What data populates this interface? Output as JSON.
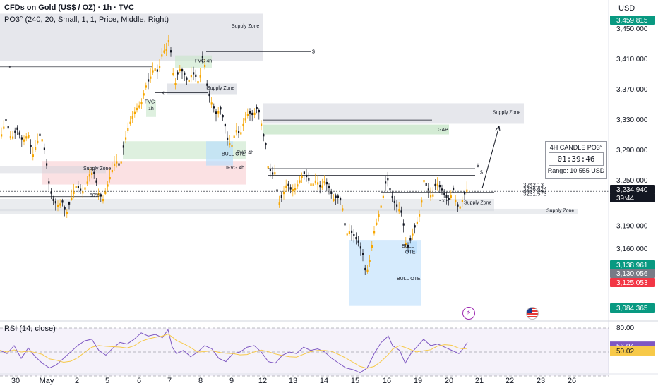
{
  "header": {
    "title": "CFDs on Gold (US$ / OZ) · 1h · TVC",
    "indicator": "PO3° (240, 20, Small, 1, 1, Price, Middle, Right)"
  },
  "currency": "USD",
  "chart_data": {
    "type": "candlestick",
    "price_axis": {
      "ticks": [
        3450,
        3410,
        3370,
        3330,
        3290,
        3250,
        3190,
        3160
      ],
      "tick_labels": [
        "3,450.000",
        "3,410.000",
        "3,370.000",
        "3,330.000",
        "3,290.000",
        "3,250.000",
        "3,190.000",
        "3,160.000"
      ],
      "range": [
        3085,
        3470
      ]
    },
    "time_axis": {
      "labels": [
        "30",
        "May",
        "2",
        "5",
        "6",
        "7",
        "8",
        "9",
        "12",
        "13",
        "14",
        "15",
        "16",
        "19",
        "20",
        "21",
        "22",
        "23",
        "26"
      ]
    },
    "price_path": [
      [
        0,
        3305
      ],
      [
        8,
        3330
      ],
      [
        16,
        3305
      ],
      [
        24,
        3318
      ],
      [
        32,
        3302
      ],
      [
        40,
        3312
      ],
      [
        46,
        3282
      ],
      [
        52,
        3300
      ],
      [
        58,
        3312
      ],
      [
        64,
        3285
      ],
      [
        70,
        3240
      ],
      [
        76,
        3222
      ],
      [
        82,
        3218
      ],
      [
        88,
        3222
      ],
      [
        94,
        3206
      ],
      [
        100,
        3225
      ],
      [
        108,
        3244
      ],
      [
        116,
        3234
      ],
      [
        122,
        3244
      ],
      [
        128,
        3262
      ],
      [
        134,
        3258
      ],
      [
        140,
        3232
      ],
      [
        146,
        3226
      ],
      [
        152,
        3244
      ],
      [
        158,
        3262
      ],
      [
        164,
        3278
      ],
      [
        170,
        3267
      ],
      [
        176,
        3300
      ],
      [
        182,
        3322
      ],
      [
        188,
        3336
      ],
      [
        194,
        3346
      ],
      [
        200,
        3352
      ],
      [
        206,
        3374
      ],
      [
        212,
        3384
      ],
      [
        218,
        3400
      ],
      [
        224,
        3392
      ],
      [
        230,
        3420
      ],
      [
        236,
        3424
      ],
      [
        240,
        3440
      ],
      [
        244,
        3398
      ],
      [
        248,
        3378
      ],
      [
        254,
        3398
      ],
      [
        260,
        3392
      ],
      [
        266,
        3380
      ],
      [
        272,
        3392
      ],
      [
        278,
        3386
      ],
      [
        282,
        3378
      ],
      [
        288,
        3420
      ],
      [
        294,
        3368
      ],
      [
        300,
        3352
      ],
      [
        306,
        3338
      ],
      [
        312,
        3345
      ],
      [
        318,
        3326
      ],
      [
        322,
        3304
      ],
      [
        328,
        3296
      ],
      [
        334,
        3318
      ],
      [
        340,
        3310
      ],
      [
        346,
        3330
      ],
      [
        352,
        3340
      ],
      [
        358,
        3336
      ],
      [
        364,
        3345
      ],
      [
        368,
        3338
      ],
      [
        372,
        3312
      ],
      [
        376,
        3300
      ],
      [
        380,
        3266
      ],
      [
        386,
        3258
      ],
      [
        390,
        3262
      ],
      [
        394,
        3218
      ],
      [
        400,
        3230
      ],
      [
        406,
        3246
      ],
      [
        412,
        3238
      ],
      [
        418,
        3240
      ],
      [
        424,
        3250
      ],
      [
        430,
        3260
      ],
      [
        436,
        3252
      ],
      [
        442,
        3244
      ],
      [
        448,
        3252
      ],
      [
        454,
        3240
      ],
      [
        460,
        3250
      ],
      [
        466,
        3240
      ],
      [
        472,
        3226
      ],
      [
        478,
        3228
      ],
      [
        484,
        3222
      ],
      [
        490,
        3180
      ],
      [
        496,
        3184
      ],
      [
        502,
        3176
      ],
      [
        508,
        3168
      ],
      [
        514,
        3152
      ],
      [
        518,
        3127
      ],
      [
        522,
        3136
      ],
      [
        526,
        3160
      ],
      [
        530,
        3184
      ],
      [
        536,
        3204
      ],
      [
        542,
        3226
      ],
      [
        548,
        3256
      ],
      [
        554,
        3230
      ],
      [
        560,
        3218
      ],
      [
        566,
        3212
      ],
      [
        570,
        3205
      ],
      [
        574,
        3170
      ],
      [
        578,
        3162
      ],
      [
        584,
        3180
      ],
      [
        590,
        3194
      ],
      [
        596,
        3212
      ],
      [
        600,
        3252
      ],
      [
        606,
        3238
      ],
      [
        612,
        3228
      ],
      [
        618,
        3248
      ],
      [
        624,
        3240
      ],
      [
        630,
        3230
      ],
      [
        636,
        3224
      ],
      [
        642,
        3238
      ],
      [
        646,
        3222
      ],
      [
        650,
        3212
      ],
      [
        656,
        3228
      ],
      [
        662,
        3240
      ]
    ],
    "rsi": {
      "title": "RSI (14, close)",
      "levels": [
        80,
        50
      ],
      "level_labels": [
        "80.00",
        "56.04",
        "50.02"
      ],
      "rsi_value": 56.04,
      "rsi_ma_value": 50.02,
      "path": [
        [
          0,
          52
        ],
        [
          10,
          48
        ],
        [
          20,
          58
        ],
        [
          30,
          42
        ],
        [
          40,
          55
        ],
        [
          50,
          44
        ],
        [
          60,
          36
        ],
        [
          70,
          30
        ],
        [
          80,
          34
        ],
        [
          90,
          42
        ],
        [
          100,
          50
        ],
        [
          110,
          58
        ],
        [
          120,
          64
        ],
        [
          130,
          66
        ],
        [
          140,
          52
        ],
        [
          150,
          46
        ],
        [
          160,
          55
        ],
        [
          170,
          62
        ],
        [
          180,
          60
        ],
        [
          190,
          66
        ],
        [
          200,
          74
        ],
        [
          210,
          70
        ],
        [
          220,
          72
        ],
        [
          230,
          68
        ],
        [
          238,
          78
        ],
        [
          244,
          56
        ],
        [
          250,
          48
        ],
        [
          260,
          52
        ],
        [
          270,
          44
        ],
        [
          280,
          50
        ],
        [
          290,
          58
        ],
        [
          300,
          54
        ],
        [
          310,
          42
        ],
        [
          320,
          38
        ],
        [
          330,
          48
        ],
        [
          340,
          50
        ],
        [
          350,
          56
        ],
        [
          360,
          58
        ],
        [
          370,
          50
        ],
        [
          380,
          38
        ],
        [
          390,
          36
        ],
        [
          400,
          46
        ],
        [
          410,
          50
        ],
        [
          420,
          48
        ],
        [
          430,
          56
        ],
        [
          440,
          52
        ],
        [
          450,
          54
        ],
        [
          460,
          50
        ],
        [
          470,
          42
        ],
        [
          480,
          36
        ],
        [
          490,
          30
        ],
        [
          500,
          28
        ],
        [
          510,
          24
        ],
        [
          520,
          30
        ],
        [
          530,
          48
        ],
        [
          540,
          62
        ],
        [
          550,
          70
        ],
        [
          556,
          58
        ],
        [
          566,
          52
        ],
        [
          574,
          36
        ],
        [
          582,
          48
        ],
        [
          590,
          56
        ],
        [
          600,
          66
        ],
        [
          610,
          58
        ],
        [
          620,
          60
        ],
        [
          630,
          56
        ],
        [
          640,
          52
        ],
        [
          650,
          48
        ],
        [
          656,
          54
        ],
        [
          662,
          62
        ]
      ]
    }
  },
  "price_badges": [
    {
      "value": "3,459.815",
      "color": "#089981"
    },
    {
      "value": "3,234.940",
      "color": "#131722"
    },
    {
      "value": "39:44",
      "color": "#131722"
    },
    {
      "value": "3,138.961",
      "color": "#089981"
    },
    {
      "value": "3,130.056",
      "color": "#787b86"
    },
    {
      "value": "3,125.053",
      "color": "#f23645"
    },
    {
      "value": "3,084.365",
      "color": "#089981"
    }
  ],
  "annotations": {
    "supply_zone": "Supply Zone",
    "fvg_4h": "FVG 4h",
    "fvg_1h": "FVG\n1h",
    "bull_ote": "BULL OTE",
    "ifvg_4h": "IFVG 4h",
    "gap": "GAP",
    "dollar": "$",
    "x": "x",
    "fifty": "50%",
    "dash_x": "- x -",
    "bull_ote_small": "BULL\nOTE",
    "price_3242": "3242.13",
    "price_3236": "3236.624",
    "price_3231": "3231.573"
  },
  "info_box": {
    "title": "4H CANDLE PO3°",
    "countdown": "01:39:46",
    "range": "Range: 10.555 USD"
  },
  "icons": {
    "bolt": "lightning-icon",
    "flag": "us-flag-icon"
  },
  "colors": {
    "candle_up": "#f7a600",
    "candle_down": "#131722",
    "rsi_line": "#7e57c2",
    "rsi_ma": "#f7c948",
    "zone_gray": "#d1d4dc",
    "zone_green": "#c8e6c9",
    "zone_red": "#f8c8cc",
    "zone_blue": "#bbdefb"
  }
}
